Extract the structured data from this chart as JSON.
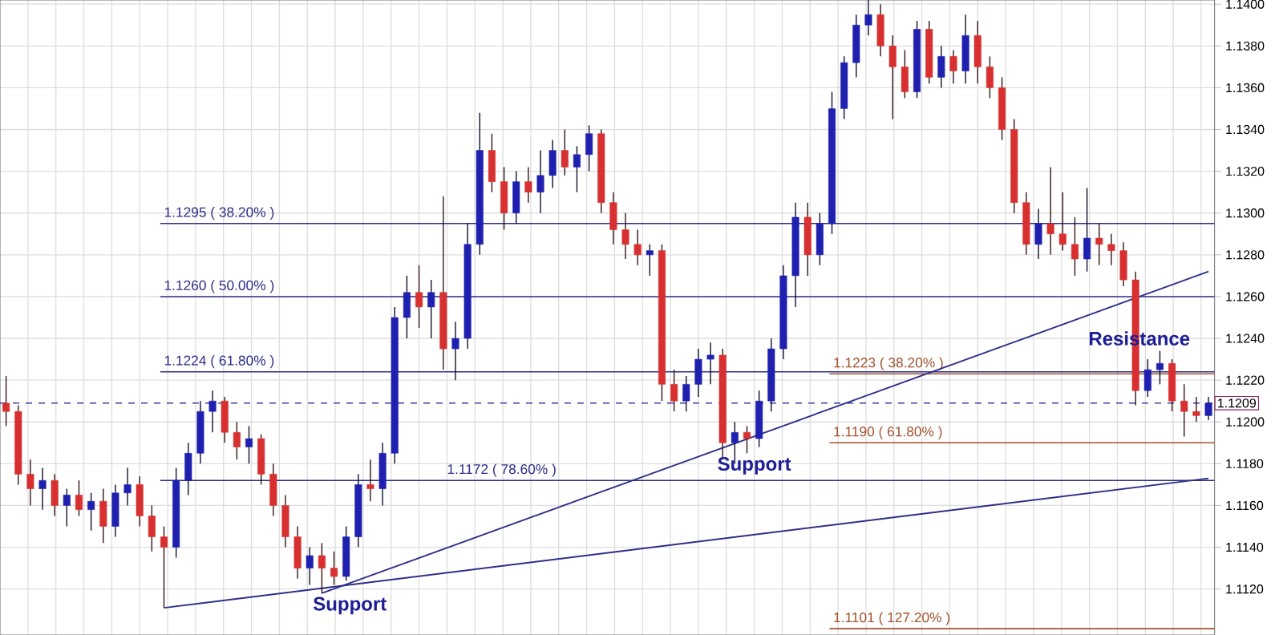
{
  "chart_data": {
    "type": "candlestick",
    "categories": [
      null,
      null,
      null,
      null,
      null,
      null,
      null,
      null,
      null,
      null,
      null,
      null,
      null,
      null,
      null,
      null,
      null,
      null,
      null,
      null,
      null,
      null,
      null,
      null,
      null,
      null,
      null,
      null,
      null,
      null,
      null,
      null,
      null,
      null,
      null,
      null,
      null,
      null,
      null,
      null,
      null,
      null,
      null,
      null,
      null,
      null,
      null,
      null,
      null,
      null,
      null,
      null,
      null,
      null,
      null,
      null,
      null,
      null,
      null,
      null,
      null,
      null,
      null,
      null,
      null,
      null,
      null,
      null,
      null,
      null,
      null,
      null,
      null,
      null,
      null,
      null,
      null,
      null,
      null,
      null,
      null,
      null,
      null,
      null,
      null,
      null,
      null,
      null,
      null,
      null,
      null,
      null,
      null,
      null,
      null,
      null,
      null,
      null,
      null,
      null
    ],
    "ohlc": [
      [
        1.1209,
        1.1222,
        1.1198,
        1.1205
      ],
      [
        1.1205,
        1.1208,
        1.117,
        1.1175
      ],
      [
        1.1175,
        1.1182,
        1.116,
        1.1168
      ],
      [
        1.1168,
        1.1178,
        1.1158,
        1.1172
      ],
      [
        1.1172,
        1.1175,
        1.1155,
        1.116
      ],
      [
        1.116,
        1.1168,
        1.115,
        1.1165
      ],
      [
        1.1165,
        1.1172,
        1.1155,
        1.1158
      ],
      [
        1.1158,
        1.1166,
        1.1148,
        1.1162
      ],
      [
        1.1162,
        1.1168,
        1.1142,
        1.115
      ],
      [
        1.115,
        1.117,
        1.1145,
        1.1166
      ],
      [
        1.1166,
        1.1178,
        1.116,
        1.117
      ],
      [
        1.117,
        1.1174,
        1.115,
        1.1155
      ],
      [
        1.1155,
        1.116,
        1.1138,
        1.1145
      ],
      [
        1.1145,
        1.115,
        1.1111,
        1.114
      ],
      [
        1.114,
        1.1178,
        1.1135,
        1.1172
      ],
      [
        1.1172,
        1.119,
        1.1165,
        1.1185
      ],
      [
        1.1185,
        1.121,
        1.118,
        1.1205
      ],
      [
        1.1205,
        1.1215,
        1.1195,
        1.121
      ],
      [
        1.121,
        1.1212,
        1.119,
        1.1195
      ],
      [
        1.1195,
        1.12,
        1.1182,
        1.1188
      ],
      [
        1.1188,
        1.1198,
        1.118,
        1.1192
      ],
      [
        1.1192,
        1.1194,
        1.117,
        1.1175
      ],
      [
        1.1175,
        1.118,
        1.1155,
        1.116
      ],
      [
        1.116,
        1.1165,
        1.114,
        1.1145
      ],
      [
        1.1145,
        1.115,
        1.1125,
        1.113
      ],
      [
        1.113,
        1.114,
        1.1122,
        1.1136
      ],
      [
        1.1136,
        1.1142,
        1.1118,
        1.113
      ],
      [
        1.113,
        1.1138,
        1.1122,
        1.1126
      ],
      [
        1.1126,
        1.115,
        1.1124,
        1.1145
      ],
      [
        1.1145,
        1.1175,
        1.114,
        1.117
      ],
      [
        1.117,
        1.1182,
        1.1162,
        1.1168
      ],
      [
        1.1168,
        1.119,
        1.116,
        1.1185
      ],
      [
        1.1185,
        1.1255,
        1.118,
        1.125
      ],
      [
        1.125,
        1.127,
        1.124,
        1.1262
      ],
      [
        1.1262,
        1.1275,
        1.1245,
        1.1255
      ],
      [
        1.1255,
        1.1268,
        1.124,
        1.1262
      ],
      [
        1.1262,
        1.1308,
        1.1225,
        1.1235
      ],
      [
        1.1235,
        1.1248,
        1.122,
        1.124
      ],
      [
        1.124,
        1.1295,
        1.1235,
        1.1285
      ],
      [
        1.1285,
        1.1348,
        1.128,
        1.133
      ],
      [
        1.133,
        1.1338,
        1.131,
        1.1315
      ],
      [
        1.1315,
        1.1322,
        1.1292,
        1.13
      ],
      [
        1.13,
        1.132,
        1.1295,
        1.1315
      ],
      [
        1.1315,
        1.1322,
        1.1305,
        1.131
      ],
      [
        1.131,
        1.133,
        1.13,
        1.1318
      ],
      [
        1.1318,
        1.1335,
        1.1312,
        1.133
      ],
      [
        1.133,
        1.134,
        1.1318,
        1.1322
      ],
      [
        1.1322,
        1.1332,
        1.131,
        1.1328
      ],
      [
        1.1328,
        1.1342,
        1.132,
        1.1338
      ],
      [
        1.1338,
        1.134,
        1.13,
        1.1305
      ],
      [
        1.1305,
        1.131,
        1.1285,
        1.1292
      ],
      [
        1.1292,
        1.13,
        1.1278,
        1.1285
      ],
      [
        1.1285,
        1.1292,
        1.1275,
        1.128
      ],
      [
        1.128,
        1.1285,
        1.127,
        1.1282
      ],
      [
        1.1282,
        1.1285,
        1.121,
        1.1218
      ],
      [
        1.1218,
        1.1225,
        1.1205,
        1.121
      ],
      [
        1.121,
        1.1222,
        1.1205,
        1.1218
      ],
      [
        1.1218,
        1.1235,
        1.1212,
        1.123
      ],
      [
        1.123,
        1.1238,
        1.1218,
        1.1232
      ],
      [
        1.1232,
        1.1235,
        1.1182,
        1.119
      ],
      [
        1.119,
        1.12,
        1.118,
        1.1195
      ],
      [
        1.1195,
        1.1198,
        1.1185,
        1.1192
      ],
      [
        1.1192,
        1.1215,
        1.1188,
        1.121
      ],
      [
        1.121,
        1.124,
        1.1205,
        1.1235
      ],
      [
        1.1235,
        1.1275,
        1.123,
        1.127
      ],
      [
        1.127,
        1.1305,
        1.1255,
        1.1298
      ],
      [
        1.1298,
        1.1305,
        1.127,
        1.128
      ],
      [
        1.128,
        1.13,
        1.1275,
        1.1295
      ],
      [
        1.1295,
        1.1358,
        1.129,
        1.135
      ],
      [
        1.135,
        1.1375,
        1.1345,
        1.1372
      ],
      [
        1.1372,
        1.1395,
        1.1365,
        1.139
      ],
      [
        1.139,
        1.1402,
        1.1385,
        1.1395
      ],
      [
        1.1395,
        1.14,
        1.1375,
        1.138
      ],
      [
        1.138,
        1.1385,
        1.1345,
        1.137
      ],
      [
        1.137,
        1.1378,
        1.1355,
        1.1358
      ],
      [
        1.1358,
        1.1392,
        1.1355,
        1.1388
      ],
      [
        1.1388,
        1.1392,
        1.1362,
        1.1365
      ],
      [
        1.1365,
        1.138,
        1.136,
        1.1375
      ],
      [
        1.1375,
        1.1378,
        1.1362,
        1.1368
      ],
      [
        1.1368,
        1.1395,
        1.1362,
        1.1385
      ],
      [
        1.1385,
        1.1392,
        1.1362,
        1.137
      ],
      [
        1.137,
        1.1375,
        1.1355,
        1.136
      ],
      [
        1.136,
        1.1365,
        1.1335,
        1.134
      ],
      [
        1.134,
        1.1345,
        1.13,
        1.1305
      ],
      [
        1.1305,
        1.131,
        1.128,
        1.1285
      ],
      [
        1.1285,
        1.1302,
        1.1278,
        1.1295
      ],
      [
        1.1295,
        1.1322,
        1.128,
        1.129
      ],
      [
        1.129,
        1.131,
        1.1282,
        1.1285
      ],
      [
        1.1285,
        1.1298,
        1.127,
        1.1278
      ],
      [
        1.1278,
        1.1312,
        1.1272,
        1.1288
      ],
      [
        1.1288,
        1.1295,
        1.1275,
        1.1285
      ],
      [
        1.1285,
        1.129,
        1.1275,
        1.1282
      ],
      [
        1.1282,
        1.1286,
        1.1265,
        1.1268
      ],
      [
        1.1268,
        1.1272,
        1.1208,
        1.1215
      ],
      [
        1.1215,
        1.123,
        1.1212,
        1.1225
      ],
      [
        1.1225,
        1.1234,
        1.1218,
        1.1228
      ],
      [
        1.1228,
        1.123,
        1.1205,
        1.121
      ],
      [
        1.121,
        1.1218,
        1.1193,
        1.1205
      ],
      [
        1.1205,
        1.1212,
        1.12,
        1.1203
      ],
      [
        1.1203,
        1.1212,
        1.1201,
        1.1209
      ]
    ],
    "colors": [
      "#d83030",
      "#d83030",
      "#d83030",
      "#2020b0",
      "#d83030",
      "#2020b0",
      "#d83030",
      "#2020b0",
      "#d83030",
      "#2020b0",
      "#2020b0",
      "#d83030",
      "#d83030",
      "#d83030",
      "#2020b0",
      "#2020b0",
      "#2020b0",
      "#2020b0",
      "#d83030",
      "#d83030",
      "#2020b0",
      "#d83030",
      "#d83030",
      "#d83030",
      "#d83030",
      "#2020b0",
      "#d83030",
      "#d83030",
      "#2020b0",
      "#2020b0",
      "#d83030",
      "#2020b0",
      "#2020b0",
      "#2020b0",
      "#d83030",
      "#2020b0",
      "#d83030",
      "#2020b0",
      "#2020b0",
      "#2020b0",
      "#d83030",
      "#d83030",
      "#2020b0",
      "#d83030",
      "#2020b0",
      "#2020b0",
      "#d83030",
      "#2020b0",
      "#2020b0",
      "#d83030",
      "#d83030",
      "#d83030",
      "#d83030",
      "#2020b0",
      "#d83030",
      "#d83030",
      "#2020b0",
      "#2020b0",
      "#2020b0",
      "#d83030",
      "#2020b0",
      "#d83030",
      "#2020b0",
      "#2020b0",
      "#2020b0",
      "#2020b0",
      "#d83030",
      "#2020b0",
      "#2020b0",
      "#2020b0",
      "#2020b0",
      "#2020b0",
      "#d83030",
      "#d83030",
      "#d83030",
      "#2020b0",
      "#d83030",
      "#2020b0",
      "#d83030",
      "#2020b0",
      "#d83030",
      "#d83030",
      "#d83030",
      "#d83030",
      "#d83030",
      "#2020b0",
      "#d83030",
      "#d83030",
      "#d83030",
      "#2020b0",
      "#d83030",
      "#d83030",
      "#d83030",
      "#d83030",
      "#2020b0",
      "#2020b0",
      "#d83030",
      "#d83030",
      "#d83030",
      "#2020b0"
    ],
    "series": [
      {
        "type": "line",
        "color": "#2e2e8a",
        "values": [
          null,
          null,
          null,
          null,
          null,
          null,
          null,
          null,
          null,
          null,
          null,
          null,
          null,
          1.1111,
          null,
          null,
          null,
          null,
          null,
          null,
          null,
          null,
          null,
          null,
          null,
          null,
          null,
          null,
          null,
          null,
          null,
          null,
          null,
          null,
          null,
          null,
          null,
          null,
          null,
          null,
          null,
          null,
          null,
          null,
          null,
          null,
          null,
          null,
          null,
          null,
          null,
          null,
          null,
          null,
          null,
          null,
          null,
          null,
          null,
          null,
          null,
          null,
          null,
          null,
          null,
          null,
          null,
          null,
          null,
          null,
          null,
          null,
          null,
          null,
          null,
          null,
          null,
          null,
          null,
          null,
          null,
          null,
          null,
          null,
          null,
          null,
          null,
          null,
          null,
          null,
          null,
          null,
          null,
          null,
          null,
          null,
          null,
          null,
          null,
          1.1173
        ]
      },
      {
        "type": "line",
        "color": "#2e2e8a",
        "values": [
          null,
          null,
          null,
          null,
          null,
          null,
          null,
          null,
          null,
          null,
          null,
          null,
          null,
          null,
          null,
          null,
          null,
          null,
          null,
          null,
          null,
          null,
          null,
          null,
          null,
          null,
          1.1118,
          null,
          null,
          null,
          null,
          null,
          null,
          null,
          null,
          null,
          null,
          null,
          null,
          null,
          null,
          null,
          null,
          null,
          null,
          null,
          null,
          null,
          null,
          null,
          null,
          null,
          null,
          null,
          null,
          null,
          null,
          null,
          null,
          null,
          null,
          null,
          null,
          null,
          null,
          null,
          null,
          null,
          null,
          null,
          null,
          null,
          null,
          null,
          null,
          null,
          null,
          null,
          null,
          null,
          null,
          null,
          null,
          null,
          null,
          null,
          null,
          null,
          null,
          null,
          null,
          null,
          null,
          null,
          null,
          null,
          null,
          null,
          null,
          1.1272
        ]
      }
    ],
    "ref_lines": [
      {
        "axis": "y",
        "value": 1.1295,
        "label": "1.1295 ( 38.20% )",
        "color": "#2e2e8a"
      },
      {
        "axis": "y",
        "value": 1.126,
        "label": "1.1260 ( 50.00% )",
        "color": "#2e2e8a"
      },
      {
        "axis": "y",
        "value": 1.1224,
        "label": "1.1224 ( 61.80% )",
        "color": "#2e2e8a"
      },
      {
        "axis": "y",
        "value": 1.1172,
        "label": "1.1172 ( 78.60% )",
        "color": "#2e2e8a"
      },
      {
        "axis": "y",
        "value": 1.1223,
        "label": "1.1223 ( 38.20% )",
        "color": "#a0522d"
      },
      {
        "axis": "y",
        "value": 1.119,
        "label": "1.1190 ( 61.80% )",
        "color": "#a0522d"
      },
      {
        "axis": "y",
        "value": 1.1101,
        "label": "1.1101 ( 127.20% )",
        "color": "#a0522d"
      },
      {
        "axis": "y",
        "value": 1.1209,
        "label": "1.1209",
        "color": "#3a3a9a",
        "line_style": "dashed"
      }
    ],
    "annotations": [
      "Support",
      "Support",
      "Resistance"
    ],
    "ylim": [
      1.1098,
      1.1402
    ],
    "yticks": [
      {
        "value": 1.112,
        "label": "1.1120"
      },
      {
        "value": 1.114,
        "label": "1.1140"
      },
      {
        "value": 1.116,
        "label": "1.1160"
      },
      {
        "value": 1.118,
        "label": "1.1180"
      },
      {
        "value": 1.12,
        "label": "1.1200"
      },
      {
        "value": 1.122,
        "label": "1.1220"
      },
      {
        "value": 1.124,
        "label": "1.1240"
      },
      {
        "value": 1.126,
        "label": "1.1260"
      },
      {
        "value": 1.128,
        "label": "1.1280"
      },
      {
        "value": 1.13,
        "label": "1.1300"
      },
      {
        "value": 1.132,
        "label": "1.1320"
      },
      {
        "value": 1.134,
        "label": "1.1340"
      },
      {
        "value": 1.136,
        "label": "1.1360"
      },
      {
        "value": 1.138,
        "label": "1.1380"
      },
      {
        "value": 1.14,
        "label": "1.1400"
      }
    ],
    "grid": true,
    "tick_labels": "y"
  }
}
